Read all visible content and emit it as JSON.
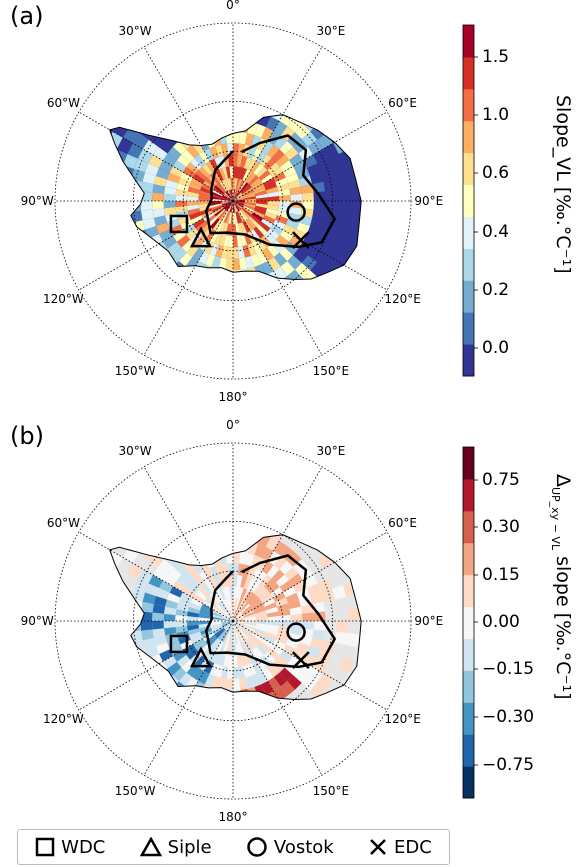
{
  "panels": [
    {
      "id": "a",
      "label": "(a)",
      "colorbar": {
        "title": "Slope_VL [‰.°C⁻¹]",
        "ticks": [
          "1.5",
          "1.0",
          "0.6",
          "0.4",
          "0.2",
          "0.0"
        ],
        "colors": [
          "#313695",
          "#4575b4",
          "#74add1",
          "#abd9e9",
          "#e0f3f8",
          "#ffffbf",
          "#fee090",
          "#fdae61",
          "#f46d43",
          "#d73027",
          "#a50026"
        ]
      }
    },
    {
      "id": "b",
      "label": "(b)",
      "colorbar": {
        "title_main": "Δ",
        "title_sub": "UP_xy − VL",
        "title_rest": " slope [‰.°C⁻¹]",
        "ticks": [
          "0.75",
          "0.30",
          "0.15",
          "0.00",
          "−0.15",
          "−0.30",
          "−0.75"
        ],
        "colors": [
          "#053061",
          "#2166ac",
          "#4393c3",
          "#92c5de",
          "#d1e5f0",
          "#f7f7f7",
          "#fddbc7",
          "#f4a582",
          "#d6604d",
          "#b2182b",
          "#67001f"
        ]
      }
    }
  ],
  "longitude_labels": [
    "0°",
    "30°E",
    "60°E",
    "90°E",
    "120°E",
    "150°E",
    "180°",
    "150°W",
    "120°W",
    "90°W",
    "60°W",
    "30°W"
  ],
  "sites": [
    {
      "name": "WDC",
      "marker": "square"
    },
    {
      "name": "Siple",
      "marker": "triangle"
    },
    {
      "name": "Vostok",
      "marker": "circle"
    },
    {
      "name": "EDC",
      "marker": "x"
    }
  ]
}
